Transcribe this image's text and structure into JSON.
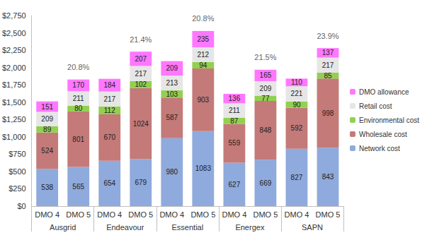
{
  "chart_data": {
    "type": "bar",
    "stacked": true,
    "data_labels": true,
    "grid": false,
    "legend": "right",
    "categories": [
      "DMO 4",
      "DMO 5",
      "DMO 4",
      "DMO 5",
      "DMO 4",
      "DMO 5",
      "DMO 4",
      "DMO 5",
      "DMO 4",
      "DMO 5"
    ],
    "groups": [
      "Ausgrid",
      "Endeavour",
      "Essential",
      "Energex",
      "SAPN"
    ],
    "series": [
      {
        "name": "Network cost",
        "color": "#8faadc",
        "values": [
          538,
          565,
          654,
          679,
          980,
          1083,
          627,
          669,
          827,
          843
        ]
      },
      {
        "name": "Wholesale cost",
        "color": "#c47a78",
        "values": [
          524,
          801,
          670,
          1024,
          587,
          903,
          559,
          848,
          592,
          998
        ]
      },
      {
        "name": "Environmental cost",
        "color": "#92d050",
        "values": [
          89,
          80,
          112,
          102,
          103,
          94,
          87,
          77,
          90,
          85
        ]
      },
      {
        "name": "Retail cost",
        "color": "#e6e6e6",
        "values": [
          209,
          211,
          217,
          217,
          213,
          212,
          211,
          209,
          221,
          217
        ]
      },
      {
        "name": "DMO allowance",
        "color": "#ff77ff",
        "values": [
          151,
          170,
          184,
          207,
          209,
          235,
          136,
          165,
          110,
          137
        ]
      }
    ],
    "annotations": [
      {
        "group": "Ausgrid",
        "category": "DMO 5",
        "text": "20.8%"
      },
      {
        "group": "Endeavour",
        "category": "DMO 5",
        "text": "21.4%"
      },
      {
        "group": "Essential",
        "category": "DMO 5",
        "text": "20.8%"
      },
      {
        "group": "Energex",
        "category": "DMO 5",
        "text": "21.5%"
      },
      {
        "group": "SAPN",
        "category": "DMO 5",
        "text": "23.9%"
      }
    ],
    "ylim": [
      0,
      2750
    ],
    "yticks": [
      {
        "value": 0,
        "label": "$0"
      },
      {
        "value": 250,
        "label": "$250"
      },
      {
        "value": 500,
        "label": "$500"
      },
      {
        "value": 750,
        "label": "$750"
      },
      {
        "value": 1000,
        "label": "$1,000"
      },
      {
        "value": 1250,
        "label": "$1,250"
      },
      {
        "value": 1500,
        "label": "$1,500"
      },
      {
        "value": 1750,
        "label": "$1,750"
      },
      {
        "value": 2000,
        "label": "$2,000"
      },
      {
        "value": 2250,
        "label": "$2,250"
      },
      {
        "value": 2500,
        "label": "$2,500"
      },
      {
        "value": 2750,
        "label": "$2,750"
      }
    ]
  }
}
